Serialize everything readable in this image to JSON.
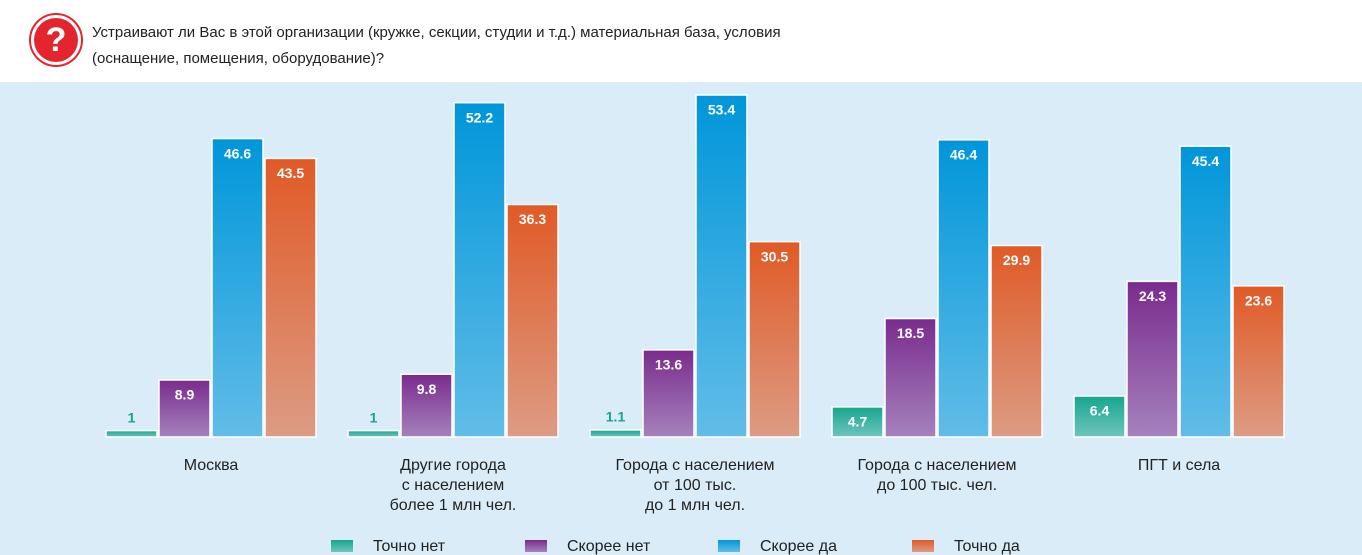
{
  "chart_data": {
    "type": "bar",
    "title_lines": [
      "Устраивают ли Вас в этой организации (кружке, секции, студии и т.д.) материальная база, условия",
      "(оснащение, помещения, оборудование)?"
    ],
    "categories": [
      "Москва",
      "Другие города\nс населением\nболее 1 млн чел.",
      "Города с населением\nот 100 тыс.\nдо 1 млн чел.",
      "Города с населением\nдо 100 тыс. чел.",
      "ПГТ и села"
    ],
    "series": [
      {
        "name": "Точно нет",
        "color": "#17a58e",
        "values": [
          1,
          1,
          1.1,
          4.7,
          6.4
        ]
      },
      {
        "name": "Скорее нет",
        "color": "#7a2b8d",
        "values": [
          8.9,
          9.8,
          13.6,
          18.5,
          24.3
        ]
      },
      {
        "name": "Скорее да",
        "color": "#0096da",
        "values": [
          46.6,
          52.2,
          53.4,
          46.4,
          45.4
        ]
      },
      {
        "name": "Точно да",
        "color": "#e05a26",
        "values": [
          43.5,
          36.3,
          30.5,
          29.9,
          23.6
        ]
      }
    ],
    "legend": "bottom"
  }
}
